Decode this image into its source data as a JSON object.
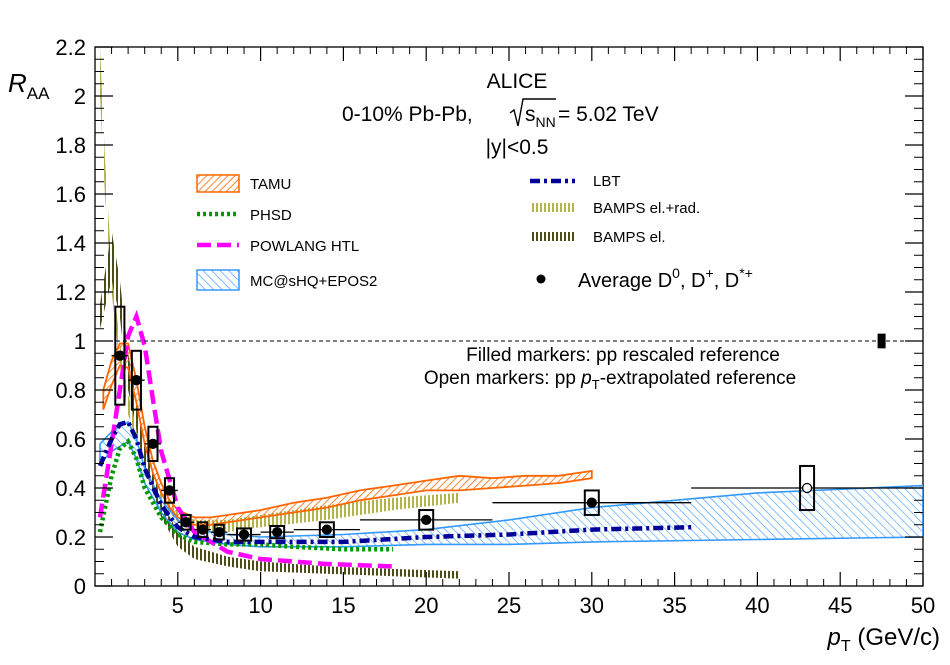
{
  "chart_data": {
    "type": "scatter",
    "x_axis": {
      "label_main": "p",
      "label_sub": "T",
      "label_unit": " (GeV/c)",
      "range": [
        0,
        50
      ],
      "ticks": [
        5,
        10,
        15,
        20,
        25,
        30,
        35,
        40,
        45,
        50
      ]
    },
    "y_axis": {
      "label_main": "R",
      "label_sub": "AA",
      "range": [
        0,
        2.2
      ],
      "ticks": [
        0,
        0.2,
        0.4,
        0.6,
        0.8,
        1,
        1.2,
        1.4,
        1.6,
        1.8,
        2,
        2.2
      ]
    },
    "reference_line": 1,
    "header": {
      "experiment": "ALICE",
      "system_prefix": "0-10% Pb-Pb, ",
      "system_energy": " = 5.02 TeV",
      "sqrt_s": "s",
      "sqrt_s_sub": "NN",
      "rapidity": "|y|<0.5"
    },
    "notes": {
      "filled": "Filled markers: pp rescaled reference",
      "open_prefix": "Open markers: pp ",
      "open_var": "p",
      "open_sub": "T",
      "open_suffix": "-extrapolated reference"
    },
    "legend": [
      {
        "name": "TAMU",
        "color": "#ff6600",
        "style": "hatched-band"
      },
      {
        "name": "PHSD",
        "color": "#009900",
        "style": "dotted"
      },
      {
        "name": "POWLANG HTL",
        "color": "#ff00ff",
        "style": "dashed"
      },
      {
        "name": "MC@sHQ+EPOS2",
        "color": "#3399ff",
        "style": "hatched-band"
      },
      {
        "name": "LBT",
        "color": "#000099",
        "style": "dash-dot"
      },
      {
        "name": "BAMPS el.+rad.",
        "color": "#b3b34d",
        "style": "dotted-band"
      },
      {
        "name": "BAMPS el.",
        "color": "#4d4d1a",
        "style": "dotted-band"
      },
      {
        "name": "Average D",
        "sup1": "0",
        "sep1": ", D",
        "sup2": "+",
        "sep2": ", D",
        "sup3": "*+",
        "color": "#000000",
        "style": "marker"
      }
    ],
    "data_points": [
      {
        "x": 1.5,
        "y": 0.94,
        "xerr": 0.5,
        "syst": 0.2,
        "open": false
      },
      {
        "x": 2.5,
        "y": 0.84,
        "xerr": 0.5,
        "syst": 0.12,
        "open": false
      },
      {
        "x": 3.5,
        "y": 0.58,
        "xerr": 0.5,
        "syst": 0.07,
        "open": false
      },
      {
        "x": 4.5,
        "y": 0.39,
        "xerr": 0.5,
        "syst": 0.05,
        "open": false
      },
      {
        "x": 5.5,
        "y": 0.26,
        "xerr": 0.5,
        "syst": 0.03,
        "open": false
      },
      {
        "x": 6.5,
        "y": 0.23,
        "xerr": 0.5,
        "syst": 0.03,
        "open": false
      },
      {
        "x": 7.5,
        "y": 0.22,
        "xerr": 0.5,
        "syst": 0.03,
        "open": false
      },
      {
        "x": 9,
        "y": 0.21,
        "xerr": 1,
        "syst": 0.025,
        "open": false
      },
      {
        "x": 11,
        "y": 0.22,
        "xerr": 1,
        "syst": 0.025,
        "open": false
      },
      {
        "x": 14,
        "y": 0.23,
        "xerr": 2,
        "syst": 0.03,
        "open": false
      },
      {
        "x": 20,
        "y": 0.27,
        "xerr": 4,
        "syst": 0.04,
        "open": false
      },
      {
        "x": 30,
        "y": 0.34,
        "xerr": 6,
        "syst": 0.05,
        "open": false
      },
      {
        "x": 43,
        "y": 0.4,
        "xerr": 7,
        "syst": 0.09,
        "open": true
      }
    ],
    "normalization_box": {
      "x": 47.5,
      "y": 1.0,
      "halfheight": 0.03
    },
    "models": {
      "TAMU": {
        "lo": [
          [
            0.5,
            0.72
          ],
          [
            1,
            0.82
          ],
          [
            1.5,
            0.9
          ],
          [
            2,
            0.89
          ],
          [
            2.5,
            0.75
          ],
          [
            3,
            0.58
          ],
          [
            3.5,
            0.46
          ],
          [
            4,
            0.38
          ],
          [
            4.5,
            0.32
          ],
          [
            5,
            0.28
          ],
          [
            6,
            0.25
          ],
          [
            7,
            0.25
          ],
          [
            8,
            0.26
          ],
          [
            10,
            0.28
          ],
          [
            12,
            0.3
          ],
          [
            14,
            0.32
          ],
          [
            16,
            0.35
          ],
          [
            18,
            0.37
          ],
          [
            20,
            0.39
          ],
          [
            22,
            0.39
          ],
          [
            24,
            0.4
          ],
          [
            26,
            0.41
          ],
          [
            28,
            0.42
          ],
          [
            30,
            0.44
          ]
        ],
        "hi": [
          [
            0.5,
            0.8
          ],
          [
            1,
            0.92
          ],
          [
            1.5,
            0.99
          ],
          [
            2,
            0.99
          ],
          [
            2.5,
            0.84
          ],
          [
            3,
            0.65
          ],
          [
            3.5,
            0.51
          ],
          [
            4,
            0.42
          ],
          [
            4.5,
            0.35
          ],
          [
            5,
            0.31
          ],
          [
            6,
            0.28
          ],
          [
            7,
            0.28
          ],
          [
            8,
            0.29
          ],
          [
            10,
            0.31
          ],
          [
            12,
            0.34
          ],
          [
            14,
            0.36
          ],
          [
            16,
            0.39
          ],
          [
            18,
            0.41
          ],
          [
            20,
            0.43
          ],
          [
            22,
            0.45
          ],
          [
            24,
            0.44
          ],
          [
            26,
            0.45
          ],
          [
            28,
            0.45
          ],
          [
            30,
            0.47
          ]
        ]
      },
      "MC@sHQ+EPOS2": {
        "lo": [
          [
            0.3,
            0.5
          ],
          [
            1,
            0.55
          ],
          [
            2,
            0.59
          ],
          [
            2.5,
            0.52
          ],
          [
            3,
            0.42
          ],
          [
            4,
            0.3
          ],
          [
            5,
            0.22
          ],
          [
            6,
            0.19
          ],
          [
            8,
            0.17
          ],
          [
            10,
            0.16
          ],
          [
            15,
            0.16
          ],
          [
            20,
            0.17
          ],
          [
            25,
            0.17
          ],
          [
            30,
            0.18
          ],
          [
            40,
            0.19
          ],
          [
            50,
            0.2
          ]
        ],
        "hi": [
          [
            0.3,
            0.58
          ],
          [
            1,
            0.63
          ],
          [
            2,
            0.67
          ],
          [
            2.5,
            0.6
          ],
          [
            3,
            0.48
          ],
          [
            4,
            0.35
          ],
          [
            5,
            0.27
          ],
          [
            6,
            0.23
          ],
          [
            8,
            0.21
          ],
          [
            10,
            0.2
          ],
          [
            15,
            0.21
          ],
          [
            20,
            0.23
          ],
          [
            25,
            0.27
          ],
          [
            30,
            0.32
          ],
          [
            40,
            0.38
          ],
          [
            50,
            0.41
          ]
        ]
      },
      "BAMPS el.+rad.": {
        "lo": [
          [
            0.3,
            2.0
          ],
          [
            0.6,
            1.6
          ],
          [
            1,
            1.2
          ],
          [
            1.5,
            0.9
          ],
          [
            2,
            0.7
          ],
          [
            3,
            0.48
          ],
          [
            4,
            0.34
          ],
          [
            5,
            0.26
          ],
          [
            6,
            0.22
          ],
          [
            8,
            0.22
          ],
          [
            10,
            0.24
          ],
          [
            14,
            0.27
          ],
          [
            18,
            0.31
          ],
          [
            22,
            0.34
          ]
        ],
        "hi": [
          [
            0.3,
            2.2
          ],
          [
            0.6,
            1.75
          ],
          [
            1,
            1.3
          ],
          [
            1.5,
            1.0
          ],
          [
            2,
            0.78
          ],
          [
            3,
            0.54
          ],
          [
            4,
            0.39
          ],
          [
            5,
            0.31
          ],
          [
            6,
            0.27
          ],
          [
            8,
            0.27
          ],
          [
            10,
            0.29
          ],
          [
            14,
            0.33
          ],
          [
            18,
            0.36
          ],
          [
            22,
            0.38
          ]
        ]
      },
      "BAMPS el.": {
        "lo": [
          [
            0.3,
            1.05
          ],
          [
            1,
            1.25
          ],
          [
            1.5,
            1.1
          ],
          [
            2,
            0.8
          ],
          [
            3,
            0.48
          ],
          [
            4,
            0.28
          ],
          [
            5,
            0.16
          ],
          [
            6,
            0.11
          ],
          [
            8,
            0.08
          ],
          [
            10,
            0.06
          ],
          [
            14,
            0.05
          ],
          [
            18,
            0.04
          ],
          [
            22,
            0.03
          ]
        ],
        "hi": [
          [
            0.3,
            1.15
          ],
          [
            1,
            1.45
          ],
          [
            1.5,
            1.25
          ],
          [
            2,
            0.95
          ],
          [
            3,
            0.58
          ],
          [
            4,
            0.35
          ],
          [
            5,
            0.22
          ],
          [
            6,
            0.16
          ],
          [
            8,
            0.12
          ],
          [
            10,
            0.1
          ],
          [
            14,
            0.08
          ],
          [
            18,
            0.07
          ],
          [
            22,
            0.06
          ]
        ]
      },
      "PHSD": [
        [
          0.3,
          0.22
        ],
        [
          1,
          0.45
        ],
        [
          1.5,
          0.56
        ],
        [
          2,
          0.59
        ],
        [
          2.5,
          0.52
        ],
        [
          3,
          0.4
        ],
        [
          4,
          0.28
        ],
        [
          5,
          0.21
        ],
        [
          6,
          0.18
        ],
        [
          8,
          0.17
        ],
        [
          10,
          0.17
        ],
        [
          12,
          0.16
        ],
        [
          15,
          0.15
        ],
        [
          18,
          0.15
        ]
      ],
      "POWLANG HTL": [
        [
          0.3,
          0.28
        ],
        [
          1,
          0.58
        ],
        [
          2,
          1.02
        ],
        [
          2.5,
          1.1
        ],
        [
          3,
          0.98
        ],
        [
          3.5,
          0.76
        ],
        [
          4,
          0.55
        ],
        [
          5,
          0.32
        ],
        [
          6,
          0.22
        ],
        [
          8,
          0.14
        ],
        [
          10,
          0.11
        ],
        [
          14,
          0.09
        ],
        [
          18,
          0.08
        ]
      ],
      "LBT": [
        [
          0.3,
          0.49
        ],
        [
          1,
          0.6
        ],
        [
          1.5,
          0.66
        ],
        [
          2,
          0.67
        ],
        [
          2.5,
          0.6
        ],
        [
          3,
          0.48
        ],
        [
          4,
          0.33
        ],
        [
          5,
          0.24
        ],
        [
          6,
          0.2
        ],
        [
          8,
          0.18
        ],
        [
          10,
          0.18
        ],
        [
          15,
          0.18
        ],
        [
          20,
          0.2
        ],
        [
          25,
          0.21
        ],
        [
          30,
          0.23
        ],
        [
          36,
          0.24
        ]
      ]
    }
  }
}
